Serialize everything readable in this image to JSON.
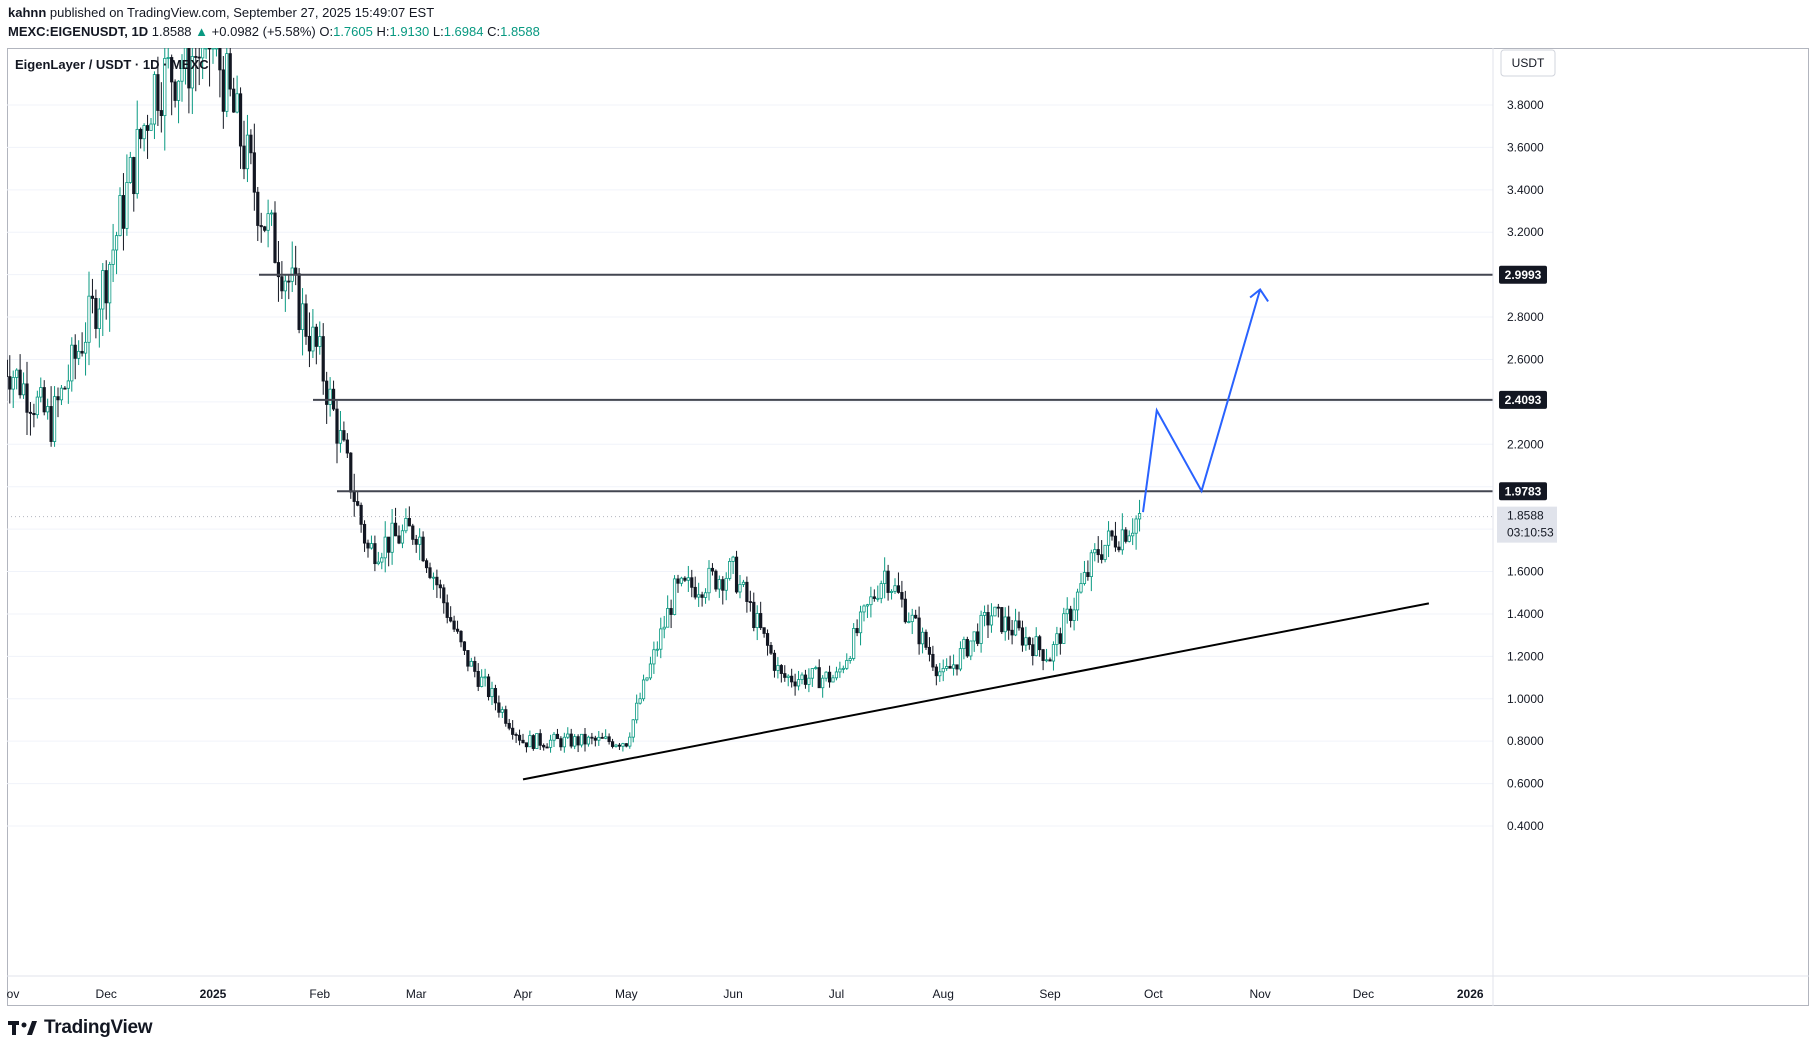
{
  "header": {
    "author": "kahnn",
    "published_text": "published on TradingView.com, September 27, 2025 15:49:07 EST"
  },
  "ohlc": {
    "symbol": "MEXC:EIGENUSDT, 1D",
    "last": "1.8588",
    "change": "+0.0982 (+5.58%)",
    "open_label": "O:",
    "open": "1.7605",
    "high_label": "H:",
    "high": "1.9130",
    "low_label": "L:",
    "low": "1.6984",
    "close_label": "C:",
    "close": "1.8588"
  },
  "legend": {
    "title": "EigenLayer / USDT · 1D · MEXC"
  },
  "axis": {
    "currency": "USDT",
    "price_ticks": [
      "3.8000",
      "3.6000",
      "3.4000",
      "3.2000",
      "2.8000",
      "2.6000",
      "2.2000",
      "1.6000",
      "1.4000",
      "1.2000",
      "1.0000",
      "0.8000",
      "0.6000",
      "0.4000"
    ],
    "time_labels": [
      "ov",
      "Dec",
      "2025",
      "Feb",
      "Mar",
      "Apr",
      "May",
      "Jun",
      "Jul",
      "Aug",
      "Sep",
      "Oct",
      "Nov",
      "Dec",
      "2026"
    ]
  },
  "levels": [
    {
      "label": "2.9993",
      "value": 2.9993
    },
    {
      "label": "2.4093",
      "value": 2.4093
    },
    {
      "label": "1.9783",
      "value": 1.9783
    }
  ],
  "current_price": {
    "label": "1.8588",
    "countdown": "03:10:53",
    "value": 1.8588
  },
  "footer": {
    "brand": "TradingView"
  },
  "colors": {
    "up": "#089981",
    "down": "#131722",
    "projection": "#2962ff",
    "level_line": "#434651",
    "trendline": "#000000"
  },
  "chart_data": {
    "type": "candlestick",
    "title": "EigenLayer / USDT · 1D · MEXC",
    "y_range": [
      0.3,
      4.2
    ],
    "grid": true,
    "series": [
      {
        "name": "EIGENUSDT",
        "x": [
          "2024-11-01",
          "2024-11-15",
          "2024-12-01",
          "2024-12-15",
          "2025-01-01",
          "2025-01-15",
          "2025-02-01",
          "2025-02-15",
          "2025-03-01",
          "2025-03-15",
          "2025-04-01",
          "2025-04-15",
          "2025-05-01",
          "2025-05-15",
          "2025-06-01",
          "2025-06-15",
          "2025-07-01",
          "2025-07-15",
          "2025-08-01",
          "2025-08-15",
          "2025-09-01",
          "2025-09-15",
          "2025-09-27"
        ],
        "close": [
          2.6,
          2.3,
          3.0,
          3.9,
          4.1,
          3.3,
          2.6,
          1.7,
          1.8,
          1.2,
          0.8,
          0.8,
          0.8,
          1.5,
          1.6,
          1.1,
          1.1,
          1.6,
          1.1,
          1.4,
          1.2,
          1.7,
          1.8588
        ]
      }
    ],
    "horizontal_levels": [
      2.9993,
      2.4093,
      1.9783
    ],
    "trendline": {
      "from": {
        "date": "2025-04-01",
        "price": 0.62
      },
      "to": {
        "date": "2025-12-20",
        "price": 1.45
      }
    },
    "projection_path": [
      {
        "date": "2025-09-28",
        "price": 1.88
      },
      {
        "date": "2025-10-02",
        "price": 2.36
      },
      {
        "date": "2025-10-15",
        "price": 1.98
      },
      {
        "date": "2025-11-01",
        "price": 2.93
      }
    ]
  }
}
